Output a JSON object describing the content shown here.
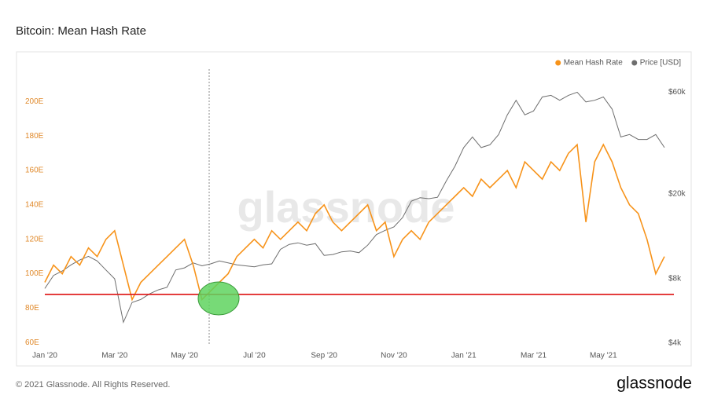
{
  "chart_data": {
    "type": "line",
    "title": "Bitcoin: Mean Hash Rate",
    "watermark": "glassnode",
    "footer": "© 2021 Glassnode. All Rights Reserved.",
    "brand": "glassnode",
    "categories": [
      "Jan '20",
      null,
      null,
      null,
      null,
      null,
      null,
      null,
      "Mar '20",
      null,
      null,
      null,
      null,
      null,
      null,
      null,
      "May '20",
      null,
      null,
      null,
      null,
      null,
      null,
      null,
      "Jul '20",
      null,
      null,
      null,
      null,
      null,
      null,
      null,
      "Sep '20",
      null,
      null,
      null,
      null,
      null,
      null,
      null,
      "Nov '20",
      null,
      null,
      null,
      null,
      null,
      null,
      null,
      "Jan '21",
      null,
      null,
      null,
      null,
      null,
      null,
      null,
      "Mar '21",
      null,
      null,
      null,
      null,
      null,
      null,
      null,
      "May '21",
      null,
      null,
      null,
      null,
      null,
      null,
      null
    ],
    "series": [
      {
        "name": "Mean Hash Rate",
        "color": "#f7931a",
        "axis": "y",
        "values": [
          95,
          105,
          100,
          110,
          105,
          115,
          110,
          120,
          125,
          105,
          85,
          95,
          100,
          105,
          110,
          115,
          120,
          105,
          85,
          90,
          95,
          100,
          110,
          115,
          120,
          115,
          125,
          120,
          125,
          130,
          125,
          135,
          140,
          130,
          125,
          130,
          135,
          140,
          125,
          130,
          110,
          120,
          125,
          120,
          130,
          135,
          140,
          145,
          150,
          145,
          155,
          150,
          155,
          160,
          150,
          165,
          160,
          155,
          165,
          160,
          170,
          175,
          130,
          165,
          175,
          165,
          150,
          140,
          135,
          120,
          100,
          110
        ]
      },
      {
        "name": "Price [USD]",
        "color": "#6e6e6e",
        "axis": "y2",
        "values": [
          7200,
          8300,
          8700,
          9300,
          9800,
          10200,
          9700,
          8800,
          8000,
          5000,
          6200,
          6400,
          6800,
          7100,
          7300,
          8800,
          9000,
          9500,
          9200,
          9400,
          9700,
          9500,
          9300,
          9200,
          9100,
          9300,
          9400,
          11000,
          11600,
          11800,
          11500,
          11700,
          10300,
          10400,
          10700,
          10800,
          10600,
          11500,
          12900,
          13500,
          14000,
          15500,
          18500,
          19200,
          19000,
          19300,
          23000,
          27000,
          33000,
          37000,
          33000,
          34000,
          38000,
          47000,
          55000,
          47000,
          49000,
          57000,
          58000,
          55000,
          58000,
          60000,
          54000,
          55000,
          57000,
          50000,
          37000,
          38000,
          36000,
          36000,
          38000,
          33000
        ]
      }
    ],
    "ylim": [
      56,
      218
    ],
    "yticks": [
      {
        "value": 60,
        "label": "60E"
      },
      {
        "value": 80,
        "label": "80E"
      },
      {
        "value": 100,
        "label": "100E"
      },
      {
        "value": 120,
        "label": "120E"
      },
      {
        "value": 140,
        "label": "140E"
      },
      {
        "value": 160,
        "label": "160E"
      },
      {
        "value": 180,
        "label": "180E"
      },
      {
        "value": 200,
        "label": "200E"
      }
    ],
    "y2lim": [
      3730,
      75700
    ],
    "y2log": true,
    "y2ticks": [
      {
        "value": 4000,
        "label": "$4k"
      },
      {
        "value": 8000,
        "label": "$8k"
      },
      {
        "value": 20000,
        "label": "$20k"
      },
      {
        "value": 60000,
        "label": "$60k"
      }
    ],
    "reference_line": {
      "value": 88,
      "color": "#e02020"
    },
    "legend": "top-right"
  }
}
